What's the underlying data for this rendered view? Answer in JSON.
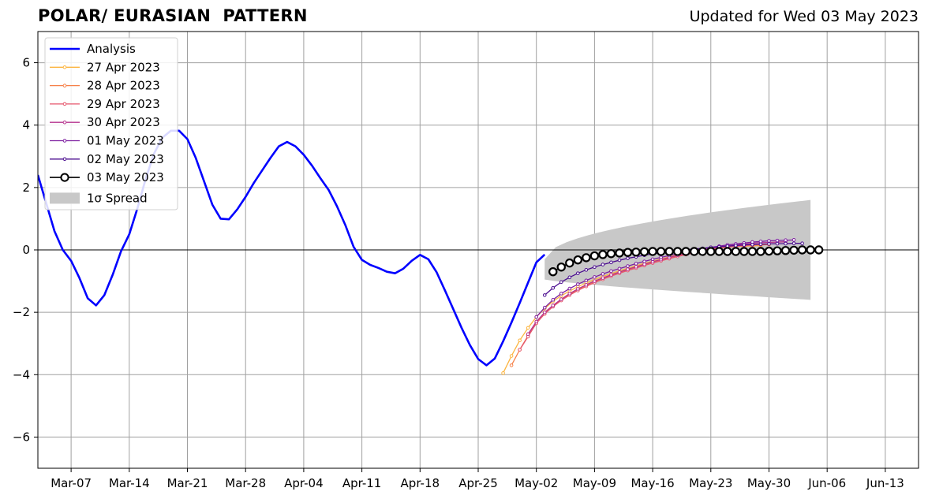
{
  "chart_data": {
    "type": "line",
    "title": "POLAR/ EURASIAN  PATTERN",
    "subtitle": "Updated for Wed 03 May 2023",
    "xlabel": "",
    "ylabel": "",
    "xlim": [
      "2023-03-03",
      "2023-06-17"
    ],
    "ylim": [
      -7,
      7
    ],
    "x_ticks": [
      "Mar-07",
      "Mar-14",
      "Mar-21",
      "Mar-28",
      "Apr-04",
      "Apr-11",
      "Apr-18",
      "Apr-25",
      "May-02",
      "May-09",
      "May-16",
      "May-23",
      "May-30",
      "Jun-06",
      "Jun-13"
    ],
    "y_ticks": [
      "6",
      "4",
      "2",
      "0",
      "−2",
      "−4",
      "−6"
    ],
    "grid": true,
    "legend_position": "top-left",
    "zero_line": 0,
    "series": [
      {
        "name": "Analysis",
        "color": "#0000ff",
        "kind": "analysis",
        "start": "2023-03-03",
        "values": [
          2.4,
          1.5,
          0.6,
          0.0,
          -0.35,
          -0.9,
          -1.55,
          -1.78,
          -1.45,
          -0.8,
          -0.05,
          0.5,
          1.35,
          2.3,
          3.1,
          3.6,
          3.82,
          3.82,
          3.55,
          2.95,
          2.2,
          1.45,
          1.0,
          0.98,
          1.3,
          1.7,
          2.15,
          2.55,
          2.95,
          3.32,
          3.46,
          3.32,
          3.05,
          2.7,
          2.3,
          1.92,
          1.4,
          0.8,
          0.1,
          -0.32,
          -0.48,
          -0.58,
          -0.7,
          -0.75,
          -0.6,
          -0.35,
          -0.16,
          -0.3,
          -0.72,
          -1.3,
          -1.9,
          -2.5,
          -3.05,
          -3.5,
          -3.7,
          -3.48,
          -2.93,
          -2.33,
          -1.7,
          -1.05,
          -0.4,
          -0.15
        ]
      },
      {
        "name": "27 Apr 2023",
        "color": "#fcb541",
        "kind": "forecast",
        "start": "2023-04-28",
        "values": [
          -3.95,
          -3.4,
          -2.9,
          -2.5,
          -2.15,
          -1.88,
          -1.65,
          -1.47,
          -1.32,
          -1.18,
          -1.06,
          -0.95,
          -0.85,
          -0.76,
          -0.67,
          -0.59,
          -0.51,
          -0.43,
          -0.36,
          -0.29,
          -0.22,
          -0.16,
          -0.1,
          -0.05,
          0.0,
          0.04,
          0.07,
          0.09,
          0.11,
          0.12,
          0.13,
          0.14
        ]
      },
      {
        "name": "28 Apr 2023",
        "color": "#f68048",
        "kind": "forecast",
        "start": "2023-04-29",
        "values": [
          -3.7,
          -3.2,
          -2.75,
          -2.35,
          -2.05,
          -1.8,
          -1.6,
          -1.43,
          -1.28,
          -1.15,
          -1.03,
          -0.92,
          -0.82,
          -0.73,
          -0.64,
          -0.56,
          -0.48,
          -0.4,
          -0.33,
          -0.26,
          -0.19,
          -0.13,
          -0.07,
          -0.02,
          0.02,
          0.06,
          0.09,
          0.11,
          0.13,
          0.15,
          0.16,
          0.17
        ]
      },
      {
        "name": "29 Apr 2023",
        "color": "#e5566c",
        "kind": "forecast",
        "start": "2023-04-30",
        "values": [
          -3.2,
          -2.78,
          -2.35,
          -2.05,
          -1.82,
          -1.62,
          -1.45,
          -1.3,
          -1.17,
          -1.05,
          -0.94,
          -0.84,
          -0.75,
          -0.66,
          -0.58,
          -0.5,
          -0.42,
          -0.35,
          -0.28,
          -0.21,
          -0.15,
          -0.09,
          -0.04,
          0.01,
          0.05,
          0.09,
          0.12,
          0.14,
          0.16,
          0.18,
          0.19,
          0.2
        ]
      },
      {
        "name": "30 Apr 2023",
        "color": "#b5338e",
        "kind": "forecast",
        "start": "2023-05-01",
        "values": [
          -2.7,
          -2.3,
          -2.0,
          -1.78,
          -1.58,
          -1.4,
          -1.25,
          -1.12,
          -1.0,
          -0.9,
          -0.8,
          -0.71,
          -0.62,
          -0.54,
          -0.46,
          -0.38,
          -0.31,
          -0.24,
          -0.17,
          -0.11,
          -0.05,
          0.0,
          0.05,
          0.09,
          0.13,
          0.16,
          0.19,
          0.21,
          0.23,
          0.24,
          0.25,
          0.26
        ]
      },
      {
        "name": "01 May 2023",
        "color": "#7d1fa0",
        "kind": "forecast",
        "start": "2023-05-02",
        "values": [
          -2.15,
          -1.85,
          -1.6,
          -1.4,
          -1.24,
          -1.1,
          -0.98,
          -0.87,
          -0.77,
          -0.68,
          -0.6,
          -0.52,
          -0.44,
          -0.37,
          -0.3,
          -0.24,
          -0.18,
          -0.12,
          -0.06,
          -0.01,
          0.04,
          0.08,
          0.12,
          0.16,
          0.19,
          0.22,
          0.25,
          0.27,
          0.29,
          0.3,
          0.31,
          0.32
        ]
      },
      {
        "name": "02 May 2023",
        "color": "#4a0c8f",
        "kind": "forecast",
        "start": "2023-05-03",
        "values": [
          -1.45,
          -1.22,
          -1.03,
          -0.88,
          -0.75,
          -0.64,
          -0.55,
          -0.47,
          -0.4,
          -0.33,
          -0.27,
          -0.22,
          -0.17,
          -0.13,
          -0.09,
          -0.06,
          -0.03,
          0.0,
          0.03,
          0.05,
          0.08,
          0.1,
          0.12,
          0.14,
          0.16,
          0.17,
          0.18,
          0.19,
          0.2,
          0.2,
          0.21,
          0.21
        ]
      },
      {
        "name": "03 May 2023",
        "color": "#000000",
        "kind": "current",
        "start": "2023-05-04",
        "values": [
          -0.7,
          -0.55,
          -0.42,
          -0.32,
          -0.25,
          -0.19,
          -0.15,
          -0.12,
          -0.1,
          -0.08,
          -0.07,
          -0.06,
          -0.05,
          -0.05,
          -0.05,
          -0.05,
          -0.05,
          -0.05,
          -0.05,
          -0.05,
          -0.05,
          -0.05,
          -0.05,
          -0.05,
          -0.05,
          -0.05,
          -0.04,
          -0.03,
          -0.02,
          -0.01,
          0.0,
          0.0,
          0.0
        ]
      }
    ],
    "spread": {
      "name": "1σ Spread",
      "color": "#c8c8c8",
      "start": "2023-05-03",
      "end": "2023-06-04",
      "lower_start": -0.95,
      "lower_end": -1.6,
      "upper_start": -0.3,
      "upper_end": 1.6
    }
  }
}
